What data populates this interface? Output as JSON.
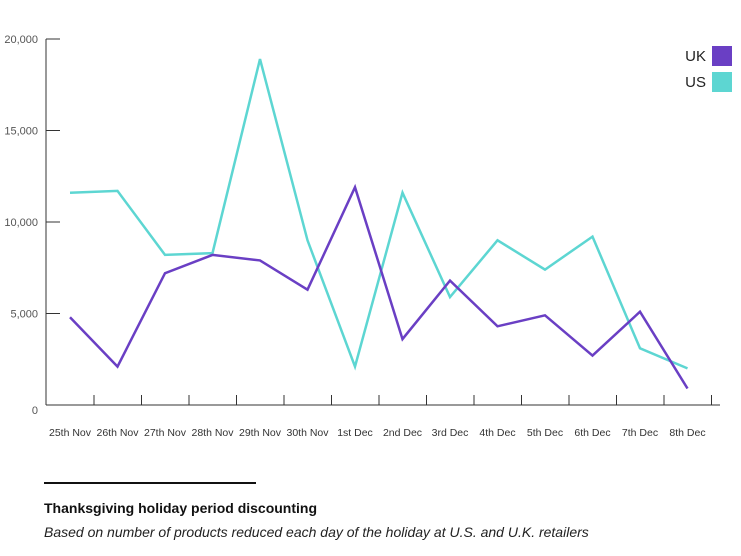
{
  "chart_data": {
    "type": "line",
    "categories": [
      "25th Nov",
      "26th Nov",
      "27th Nov",
      "28th Nov",
      "29th Nov",
      "30th Nov",
      "1st Dec",
      "2nd Dec",
      "3rd Dec",
      "4th Dec",
      "5th Dec",
      "6th Dec",
      "7th Dec",
      "8th Dec"
    ],
    "series": [
      {
        "name": "UK",
        "color": "#6a3fc4",
        "values": [
          4800,
          2100,
          7200,
          8200,
          7900,
          6300,
          11900,
          3600,
          6800,
          4300,
          4900,
          2700,
          5100,
          900
        ]
      },
      {
        "name": "US",
        "color": "#5dd6d2",
        "values": [
          11600,
          11700,
          8200,
          8300,
          18900,
          9000,
          2100,
          11600,
          5900,
          9000,
          7400,
          9200,
          3100,
          2000
        ]
      }
    ],
    "yticks": [
      "0",
      "5,000",
      "10,000",
      "15,000",
      "20,000"
    ],
    "ylim": [
      0,
      20000
    ],
    "grid": false,
    "legend": "top-right"
  },
  "caption": {
    "title": "Thanksgiving holiday period discounting",
    "subtitle": "Based on number of products reduced each day of the holiday at U.S. and U.K. retailers"
  }
}
